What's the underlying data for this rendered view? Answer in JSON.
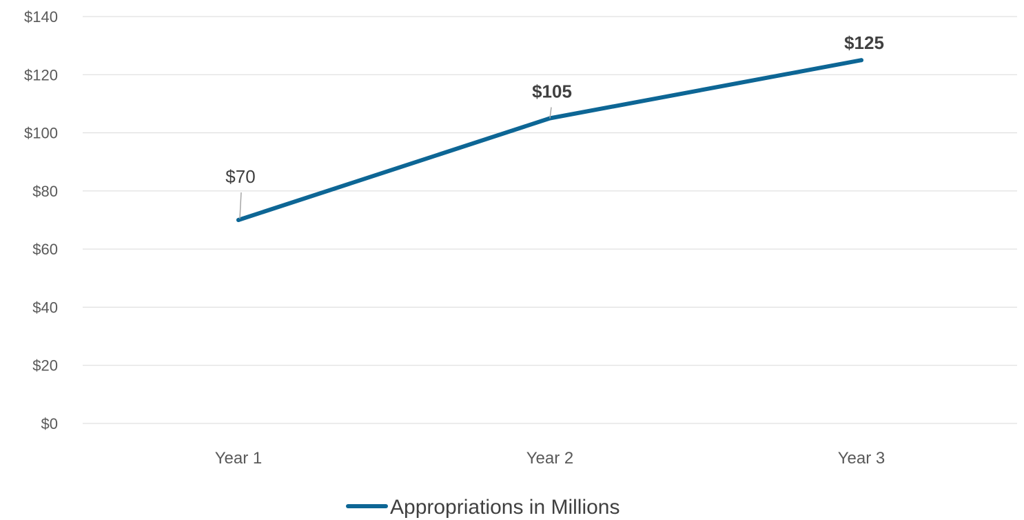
{
  "chart_data": {
    "type": "line",
    "categories": [
      "Year 1",
      "Year 2",
      "Year 3"
    ],
    "series": [
      {
        "name": "Appropriations in Millions",
        "values": [
          70,
          105,
          125
        ],
        "labels": [
          "$70",
          "$105",
          "$125"
        ],
        "label_bold": [
          false,
          true,
          true
        ],
        "color": "#0d6695"
      }
    ],
    "y_ticks": [
      0,
      20,
      40,
      60,
      80,
      100,
      120,
      140
    ],
    "y_tick_labels": [
      "$0",
      "$20",
      "$40",
      "$60",
      "$80",
      "$100",
      "$120",
      "$140"
    ],
    "ylim": [
      0,
      140
    ],
    "grid": true,
    "legend_position": "bottom",
    "title": "",
    "xlabel": "",
    "ylabel": ""
  }
}
